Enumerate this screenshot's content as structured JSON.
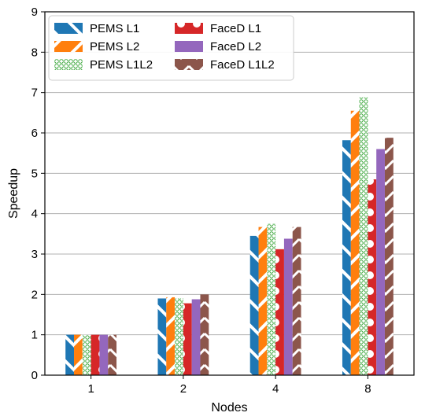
{
  "chart_data": {
    "type": "bar",
    "xlabel": "Nodes",
    "ylabel": "Speedup",
    "ylim": [
      0,
      9
    ],
    "yticks": [
      0,
      1,
      2,
      3,
      4,
      5,
      6,
      7,
      8,
      9
    ],
    "grid": "horizontal",
    "legend_position": "top-left",
    "legend_columns": 2,
    "categories": [
      "1",
      "2",
      "4",
      "8"
    ],
    "series": [
      {
        "name": "PEMS L1",
        "color": "#1f77b4",
        "pattern": "slash",
        "values": [
          1.0,
          1.9,
          3.45,
          5.82
        ]
      },
      {
        "name": "PEMS L2",
        "color": "#ff7f0e",
        "pattern": "backslash",
        "values": [
          1.0,
          1.93,
          3.67,
          6.55
        ]
      },
      {
        "name": "PEMS L1L2",
        "color": "#2ca02c",
        "pattern": "hexagon",
        "values": [
          1.0,
          1.9,
          3.75,
          6.88
        ]
      },
      {
        "name": "FaceD L1",
        "color": "#d62728",
        "pattern": "circles",
        "values": [
          1.0,
          1.78,
          3.12,
          4.85
        ]
      },
      {
        "name": "FaceD L2",
        "color": "#9467bd",
        "pattern": "solid",
        "values": [
          1.0,
          1.88,
          3.38,
          5.6
        ]
      },
      {
        "name": "FaceD L1L2",
        "color": "#8c564b",
        "pattern": "chevron",
        "values": [
          1.0,
          2.0,
          3.67,
          5.88
        ]
      }
    ]
  }
}
